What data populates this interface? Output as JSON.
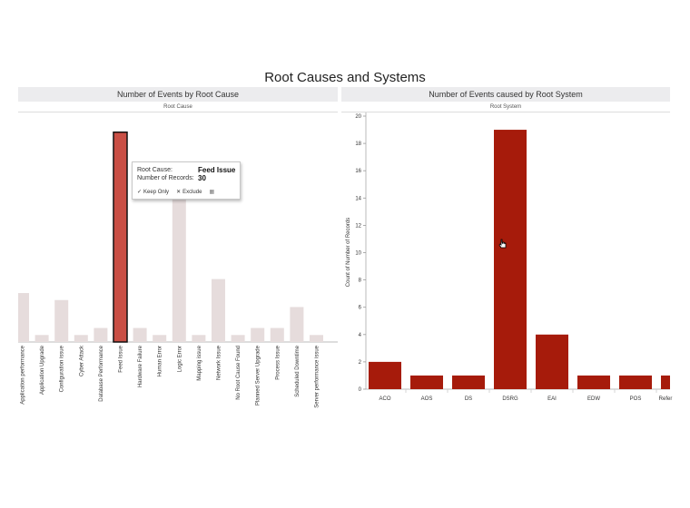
{
  "dashboard_title": "Root Causes and Systems",
  "colors": {
    "highlight": "#c94f45",
    "muted": "#e6dcdc",
    "system_bar": "#a61b0b",
    "axis": "#999999"
  },
  "left_panel": {
    "header": "Number of Events by Root Cause",
    "column_header": "Root Cause"
  },
  "right_panel": {
    "header": "Number of Events caused by Root System",
    "column_header": "Root System"
  },
  "tooltip": {
    "field1_label": "Root Cause:",
    "field1_value": "Feed Issue",
    "field2_label": "Number of Records:",
    "field2_value": "30",
    "keep_only": "Keep Only",
    "exclude": "Exclude"
  },
  "chart_data": [
    {
      "type": "bar",
      "title": "Number of Events by Root Cause",
      "xlabel": "Root Cause",
      "ylabel": "",
      "ylim": [
        0,
        31
      ],
      "categories": [
        "Application performance",
        "Application Upgrade",
        "Configuration issue",
        "Cyber Attack",
        "Database Performance",
        "Feed Issue",
        "Hardware Failure",
        "Human Error",
        "Logic Error",
        "Mapping issue",
        "Network Issue",
        "No Root Cause Found",
        "Planned Server Upgrade",
        "Process Issue",
        "Scheduled Downtime",
        "Server performance issue"
      ],
      "values": [
        7,
        1,
        6,
        1,
        2,
        30,
        2,
        1,
        22,
        1,
        9,
        1,
        2,
        2,
        5,
        1
      ],
      "highlighted": "Feed Issue"
    },
    {
      "type": "bar",
      "title": "Number of Events caused by Root System",
      "xlabel": "Root System",
      "ylabel": "Count of Number of Records",
      "ylim": [
        0,
        20
      ],
      "yticks": [
        0,
        2,
        4,
        6,
        8,
        10,
        12,
        14,
        16,
        18,
        20
      ],
      "categories": [
        "ACO",
        "AOS",
        "DS",
        "DSRG",
        "EAI",
        "EDW",
        "POS",
        "Refer"
      ],
      "values": [
        2,
        1,
        1,
        19,
        4,
        1,
        1,
        1
      ]
    }
  ]
}
